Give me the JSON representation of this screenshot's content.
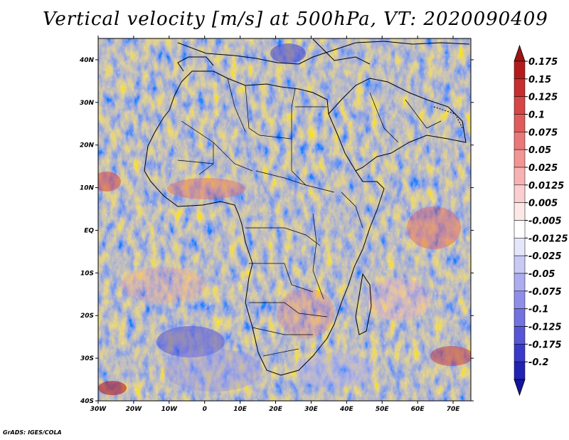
{
  "title": "Vertical velocity [m/s] at 500hPa, VT: 2020090409",
  "map": {
    "lon_range": [
      -30,
      75
    ],
    "lat_range": [
      -40,
      45
    ],
    "lat_ticks": [
      {
        "lat": 40,
        "label": "40N"
      },
      {
        "lat": 30,
        "label": "30N"
      },
      {
        "lat": 20,
        "label": "20N"
      },
      {
        "lat": 10,
        "label": "10N"
      },
      {
        "lat": 0,
        "label": "EQ"
      },
      {
        "lat": -10,
        "label": "10S"
      },
      {
        "lat": -20,
        "label": "20S"
      },
      {
        "lat": -30,
        "label": "30S"
      },
      {
        "lat": -40,
        "label": "40S"
      }
    ],
    "lon_ticks": [
      {
        "lon": -30,
        "label": "30W"
      },
      {
        "lon": -20,
        "label": "20W"
      },
      {
        "lon": -10,
        "label": "10W"
      },
      {
        "lon": 0,
        "label": "0"
      },
      {
        "lon": 10,
        "label": "10E"
      },
      {
        "lon": 20,
        "label": "20E"
      },
      {
        "lon": 30,
        "label": "30E"
      },
      {
        "lon": 40,
        "label": "40E"
      },
      {
        "lon": 50,
        "label": "50E"
      },
      {
        "lon": 60,
        "label": "60E"
      },
      {
        "lon": 70,
        "label": "70E"
      }
    ]
  },
  "colorbar": {
    "levels": [
      {
        "label": "0.175",
        "color": "#b41c1c"
      },
      {
        "label": "0.15",
        "color": "#c62f2f"
      },
      {
        "label": "0.125",
        "color": "#d64646"
      },
      {
        "label": "0.1",
        "color": "#e05c5c"
      },
      {
        "label": "0.075",
        "color": "#ea7878"
      },
      {
        "label": "0.05",
        "color": "#f29595"
      },
      {
        "label": "0.025",
        "color": "#f7b3b3"
      },
      {
        "label": "0.0125",
        "color": "#fbcfcf"
      },
      {
        "label": "0.005",
        "color": "#fde8e8"
      },
      {
        "label": "-0.005",
        "color": "#ffffff"
      },
      {
        "label": "-0.0125",
        "color": "#e6e6fb"
      },
      {
        "label": "-0.025",
        "color": "#c9c9f6"
      },
      {
        "label": "-0.05",
        "color": "#acacf1"
      },
      {
        "label": "-0.075",
        "color": "#8f8fea"
      },
      {
        "label": "-0.1",
        "color": "#7272e1"
      },
      {
        "label": "-0.125",
        "color": "#5656d6"
      },
      {
        "label": "-0.175",
        "color": "#3a3ac8"
      },
      {
        "label": "-0.2",
        "color": "#2222b4"
      }
    ],
    "top_arrow_color": "#9e1414",
    "bottom_arrow_color": "#14149e"
  },
  "credit": "GrADS: IGES/COLA"
}
